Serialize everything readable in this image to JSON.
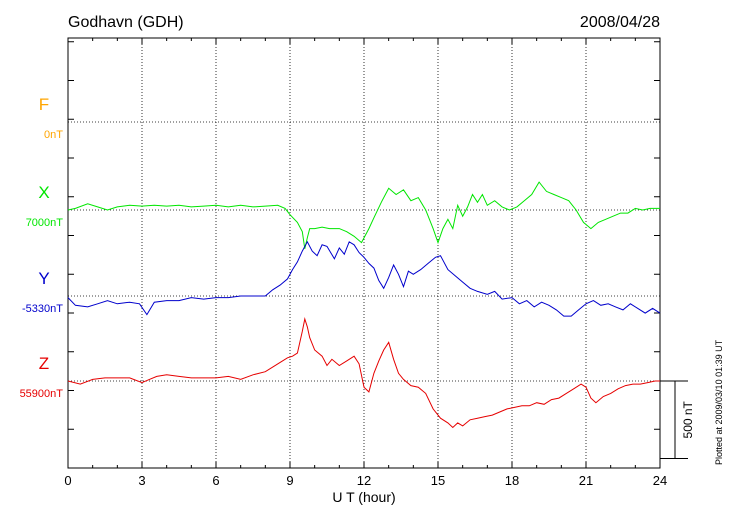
{
  "chart_data": {
    "type": "line",
    "title": "Godhavn (GDH)",
    "date": "2008/04/28",
    "xlabel": "U T (hour)",
    "xlim": [
      0,
      24
    ],
    "xticks": [
      "0",
      "3",
      "6",
      "9",
      "12",
      "15",
      "18",
      "21",
      "24"
    ],
    "y_unit": "nT",
    "grid": true,
    "scale_bar_value": 500,
    "scale_bar_label": "500 nT",
    "plotted_note": "Plotted at 2009/03/10 01:39 UT",
    "series": [
      {
        "name": "F",
        "baseline_label": "0nT",
        "baseline": 0,
        "color": "#ffa500",
        "points": []
      },
      {
        "name": "X",
        "baseline_label": "7000nT",
        "baseline": 7000,
        "color": "#00e600",
        "points": [
          [
            0,
            7000
          ],
          [
            0.3,
            7010
          ],
          [
            0.8,
            7040
          ],
          [
            1.2,
            7020
          ],
          [
            1.6,
            7000
          ],
          [
            2.0,
            7020
          ],
          [
            2.5,
            7030
          ],
          [
            3.0,
            7025
          ],
          [
            3.5,
            7030
          ],
          [
            4.0,
            7025
          ],
          [
            4.5,
            7030
          ],
          [
            5.0,
            7020
          ],
          [
            5.5,
            7025
          ],
          [
            6.0,
            7030
          ],
          [
            6.5,
            7020
          ],
          [
            7.0,
            7030
          ],
          [
            7.5,
            7020
          ],
          [
            8.0,
            7025
          ],
          [
            8.5,
            7030
          ],
          [
            8.8,
            7010
          ],
          [
            9.0,
            6970
          ],
          [
            9.3,
            6920
          ],
          [
            9.5,
            6860
          ],
          [
            9.6,
            6750
          ],
          [
            9.7,
            6820
          ],
          [
            9.8,
            6880
          ],
          [
            10.0,
            6880
          ],
          [
            10.3,
            6890
          ],
          [
            10.6,
            6880
          ],
          [
            11.0,
            6880
          ],
          [
            11.3,
            6860
          ],
          [
            11.6,
            6830
          ],
          [
            11.9,
            6790
          ],
          [
            12.0,
            6820
          ],
          [
            12.2,
            6880
          ],
          [
            12.4,
            6950
          ],
          [
            12.7,
            7050
          ],
          [
            13.0,
            7140
          ],
          [
            13.3,
            7100
          ],
          [
            13.6,
            7130
          ],
          [
            13.9,
            7060
          ],
          [
            14.2,
            7080
          ],
          [
            14.5,
            7000
          ],
          [
            14.8,
            6880
          ],
          [
            15.0,
            6790
          ],
          [
            15.2,
            6880
          ],
          [
            15.4,
            6940
          ],
          [
            15.6,
            6880
          ],
          [
            15.8,
            7030
          ],
          [
            16.0,
            6960
          ],
          [
            16.2,
            7020
          ],
          [
            16.4,
            7100
          ],
          [
            16.6,
            7050
          ],
          [
            16.8,
            7100
          ],
          [
            17.0,
            7030
          ],
          [
            17.3,
            7060
          ],
          [
            17.6,
            7020
          ],
          [
            17.9,
            7000
          ],
          [
            18.2,
            7020
          ],
          [
            18.5,
            7060
          ],
          [
            18.8,
            7100
          ],
          [
            19.1,
            7180
          ],
          [
            19.4,
            7120
          ],
          [
            19.7,
            7100
          ],
          [
            20.0,
            7080
          ],
          [
            20.3,
            7060
          ],
          [
            20.6,
            7000
          ],
          [
            20.9,
            6920
          ],
          [
            21.2,
            6880
          ],
          [
            21.5,
            6920
          ],
          [
            21.8,
            6940
          ],
          [
            22.1,
            6960
          ],
          [
            22.4,
            6980
          ],
          [
            22.7,
            6980
          ],
          [
            23.0,
            7010
          ],
          [
            23.3,
            7000
          ],
          [
            23.6,
            7010
          ],
          [
            24.0,
            7010
          ]
        ]
      },
      {
        "name": "Y",
        "baseline_label": "-5330nT",
        "baseline": -5330,
        "color": "#0000cc",
        "points": [
          [
            0,
            -5340
          ],
          [
            0.3,
            -5390
          ],
          [
            0.8,
            -5400
          ],
          [
            1.2,
            -5380
          ],
          [
            1.6,
            -5360
          ],
          [
            2.0,
            -5380
          ],
          [
            2.5,
            -5370
          ],
          [
            2.9,
            -5380
          ],
          [
            3.2,
            -5450
          ],
          [
            3.5,
            -5370
          ],
          [
            4.0,
            -5360
          ],
          [
            4.5,
            -5360
          ],
          [
            5.0,
            -5340
          ],
          [
            5.5,
            -5350
          ],
          [
            6.0,
            -5340
          ],
          [
            6.5,
            -5340
          ],
          [
            7.0,
            -5330
          ],
          [
            7.5,
            -5330
          ],
          [
            8.0,
            -5330
          ],
          [
            8.3,
            -5290
          ],
          [
            8.6,
            -5260
          ],
          [
            8.9,
            -5220
          ],
          [
            9.1,
            -5160
          ],
          [
            9.3,
            -5110
          ],
          [
            9.5,
            -5040
          ],
          [
            9.7,
            -4980
          ],
          [
            9.9,
            -5040
          ],
          [
            10.1,
            -5070
          ],
          [
            10.3,
            -5000
          ],
          [
            10.5,
            -5010
          ],
          [
            10.8,
            -5090
          ],
          [
            11.0,
            -5020
          ],
          [
            11.2,
            -5060
          ],
          [
            11.4,
            -4980
          ],
          [
            11.6,
            -5000
          ],
          [
            11.8,
            -5050
          ],
          [
            12.0,
            -5080
          ],
          [
            12.2,
            -5120
          ],
          [
            12.4,
            -5150
          ],
          [
            12.6,
            -5230
          ],
          [
            12.8,
            -5280
          ],
          [
            13.0,
            -5210
          ],
          [
            13.2,
            -5130
          ],
          [
            13.4,
            -5190
          ],
          [
            13.6,
            -5270
          ],
          [
            13.8,
            -5170
          ],
          [
            14.0,
            -5190
          ],
          [
            14.3,
            -5160
          ],
          [
            14.6,
            -5120
          ],
          [
            14.9,
            -5080
          ],
          [
            15.1,
            -5070
          ],
          [
            15.4,
            -5160
          ],
          [
            15.7,
            -5200
          ],
          [
            16.0,
            -5240
          ],
          [
            16.3,
            -5280
          ],
          [
            16.6,
            -5300
          ],
          [
            17.0,
            -5320
          ],
          [
            17.3,
            -5300
          ],
          [
            17.6,
            -5350
          ],
          [
            18.0,
            -5340
          ],
          [
            18.3,
            -5380
          ],
          [
            18.6,
            -5360
          ],
          [
            18.9,
            -5400
          ],
          [
            19.2,
            -5370
          ],
          [
            19.5,
            -5390
          ],
          [
            19.8,
            -5420
          ],
          [
            20.1,
            -5460
          ],
          [
            20.4,
            -5460
          ],
          [
            20.7,
            -5420
          ],
          [
            21.0,
            -5380
          ],
          [
            21.3,
            -5360
          ],
          [
            21.6,
            -5390
          ],
          [
            21.9,
            -5380
          ],
          [
            22.2,
            -5400
          ],
          [
            22.5,
            -5420
          ],
          [
            22.8,
            -5380
          ],
          [
            23.1,
            -5410
          ],
          [
            23.4,
            -5440
          ],
          [
            23.7,
            -5410
          ],
          [
            24.0,
            -5440
          ]
        ]
      },
      {
        "name": "Z",
        "baseline_label": "55900nT",
        "baseline": 55900,
        "color": "#e60000",
        "points": [
          [
            0,
            55900
          ],
          [
            0.5,
            55880
          ],
          [
            1.0,
            55910
          ],
          [
            1.5,
            55920
          ],
          [
            2.0,
            55920
          ],
          [
            2.5,
            55920
          ],
          [
            3.0,
            55890
          ],
          [
            3.3,
            55910
          ],
          [
            3.6,
            55930
          ],
          [
            4.0,
            55940
          ],
          [
            4.5,
            55930
          ],
          [
            5.0,
            55920
          ],
          [
            5.5,
            55920
          ],
          [
            6.0,
            55920
          ],
          [
            6.5,
            55930
          ],
          [
            7.0,
            55910
          ],
          [
            7.5,
            55940
          ],
          [
            8.0,
            55960
          ],
          [
            8.3,
            55990
          ],
          [
            8.6,
            56020
          ],
          [
            8.9,
            56050
          ],
          [
            9.1,
            56060
          ],
          [
            9.3,
            56080
          ],
          [
            9.5,
            56220
          ],
          [
            9.6,
            56300
          ],
          [
            9.7,
            56250
          ],
          [
            9.8,
            56180
          ],
          [
            10.0,
            56100
          ],
          [
            10.3,
            56060
          ],
          [
            10.5,
            56000
          ],
          [
            10.7,
            56040
          ],
          [
            11.0,
            56000
          ],
          [
            11.3,
            56030
          ],
          [
            11.6,
            56060
          ],
          [
            11.8,
            56010
          ],
          [
            12.0,
            55860
          ],
          [
            12.2,
            55830
          ],
          [
            12.4,
            55950
          ],
          [
            12.6,
            56030
          ],
          [
            12.8,
            56100
          ],
          [
            13.0,
            56150
          ],
          [
            13.2,
            56040
          ],
          [
            13.4,
            55950
          ],
          [
            13.6,
            55910
          ],
          [
            13.9,
            55870
          ],
          [
            14.2,
            55860
          ],
          [
            14.5,
            55820
          ],
          [
            14.8,
            55720
          ],
          [
            15.1,
            55660
          ],
          [
            15.4,
            55630
          ],
          [
            15.6,
            55600
          ],
          [
            15.8,
            55630
          ],
          [
            16.0,
            55610
          ],
          [
            16.3,
            55650
          ],
          [
            16.6,
            55660
          ],
          [
            16.9,
            55670
          ],
          [
            17.2,
            55680
          ],
          [
            17.5,
            55700
          ],
          [
            17.8,
            55720
          ],
          [
            18.1,
            55730
          ],
          [
            18.4,
            55740
          ],
          [
            18.7,
            55740
          ],
          [
            19.0,
            55760
          ],
          [
            19.3,
            55750
          ],
          [
            19.6,
            55780
          ],
          [
            19.9,
            55790
          ],
          [
            20.2,
            55820
          ],
          [
            20.5,
            55850
          ],
          [
            20.8,
            55880
          ],
          [
            21.0,
            55860
          ],
          [
            21.2,
            55790
          ],
          [
            21.4,
            55760
          ],
          [
            21.7,
            55800
          ],
          [
            22.0,
            55820
          ],
          [
            22.3,
            55850
          ],
          [
            22.6,
            55870
          ],
          [
            22.9,
            55880
          ],
          [
            23.2,
            55880
          ],
          [
            23.5,
            55890
          ],
          [
            23.8,
            55900
          ],
          [
            24.0,
            55900
          ]
        ]
      }
    ]
  }
}
